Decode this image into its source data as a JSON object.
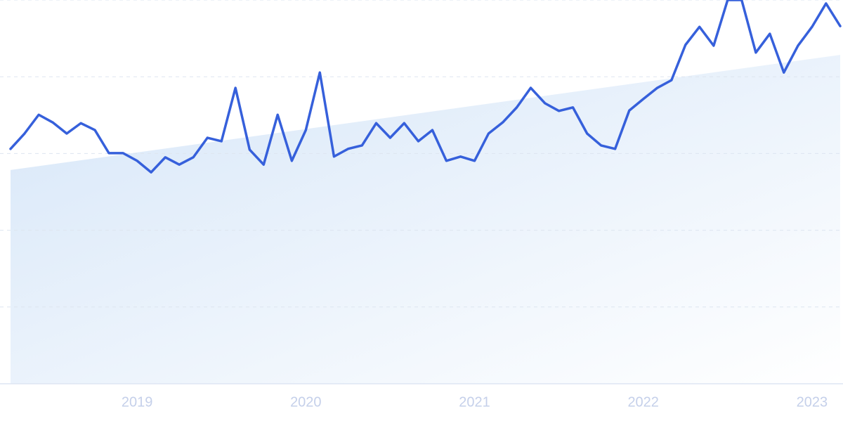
{
  "chart_data": {
    "type": "line",
    "x": [
      2018.25,
      2018.333,
      2018.417,
      2018.5,
      2018.583,
      2018.667,
      2018.75,
      2018.833,
      2018.917,
      2019,
      2019.083,
      2019.167,
      2019.25,
      2019.333,
      2019.417,
      2019.5,
      2019.583,
      2019.667,
      2019.75,
      2019.833,
      2019.917,
      2020,
      2020.083,
      2020.167,
      2020.25,
      2020.333,
      2020.417,
      2020.5,
      2020.583,
      2020.667,
      2020.75,
      2020.833,
      2020.917,
      2021,
      2021.083,
      2021.167,
      2021.25,
      2021.333,
      2021.417,
      2021.5,
      2021.583,
      2021.667,
      2021.75,
      2021.833,
      2021.917,
      2022,
      2022.083,
      2022.167,
      2022.25,
      2022.333,
      2022.417,
      2022.5,
      2022.583,
      2022.667,
      2022.75,
      2022.833,
      2022.917,
      2023,
      2023.083,
      2023.167
    ],
    "series": [
      {
        "color": "#3660db",
        "values": [
          61.2,
          65.2,
          70.1,
          68.1,
          65.2,
          67.9,
          66.1,
          60.1,
          60.1,
          58.1,
          55.1,
          59.0,
          57.1,
          59.0,
          64.1,
          63.2,
          77.1,
          61.0,
          57.1,
          70.1,
          58.1,
          66.1,
          81.1,
          59.2,
          61.2,
          62.1,
          67.9,
          64.1,
          67.9,
          63.2,
          66.1,
          58.1,
          59.2,
          58.1,
          65.2,
          68.1,
          72.0,
          77.1,
          73.1,
          71.1,
          72.0,
          65.2,
          62.1,
          61.2,
          71.2,
          74.2,
          77.1,
          79.1,
          88.3,
          93.0,
          88.1,
          100,
          100,
          86.3,
          91.2,
          81.1,
          88.1,
          93.0,
          99.1,
          93.2
        ]
      }
    ],
    "trend": {
      "color": "#d6e6f8",
      "x": [
        2018.25,
        2023.167
      ],
      "values": [
        55.7,
        85.7
      ]
    },
    "xlim": [
      2018.25,
      2023.167
    ],
    "xticks": [
      2019,
      2020,
      2021,
      2022,
      2023
    ],
    "ylim": [
      0,
      100
    ],
    "yticks": [
      0,
      20,
      40,
      60,
      80,
      100
    ],
    "grid": true
  }
}
